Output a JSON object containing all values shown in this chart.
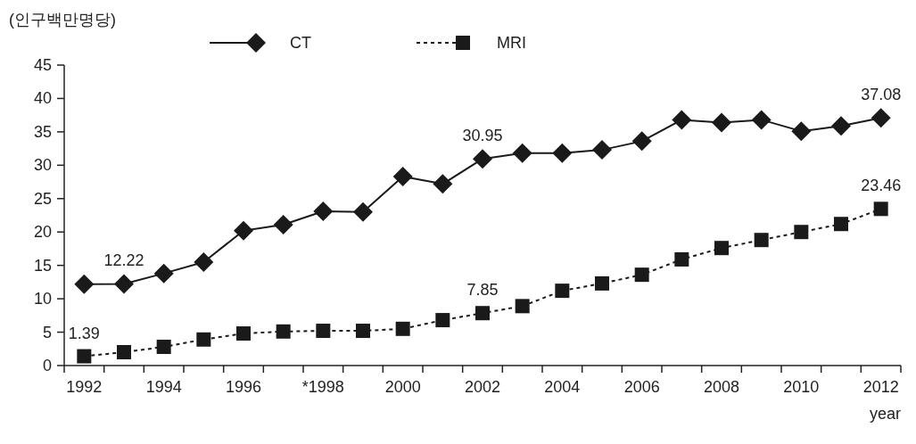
{
  "chart_data": {
    "type": "line",
    "ylabel": "(인구백만명당)",
    "xlabel": "year",
    "categories": [
      "1992",
      null,
      "1994",
      null,
      "1996",
      null,
      "*1998",
      null,
      "2000",
      null,
      "2002",
      null,
      "2004",
      null,
      "2006",
      null,
      "2008",
      null,
      "2010",
      null,
      "2012"
    ],
    "ylim": [
      0,
      45
    ],
    "yticks": [
      0,
      5,
      10,
      15,
      20,
      25,
      30,
      35,
      40,
      45
    ],
    "legend": "top",
    "series": [
      {
        "name": "CT",
        "color": "#1a1a1a",
        "marker": "diamond",
        "line_style": "solid",
        "values": [
          12.2,
          12.22,
          13.8,
          15.5,
          20.2,
          21.1,
          23.1,
          23.0,
          28.3,
          27.2,
          30.95,
          31.8,
          31.8,
          32.3,
          33.6,
          36.8,
          36.4,
          36.8,
          35.1,
          35.9,
          37.08
        ],
        "value_labels": [
          null,
          "12.22",
          null,
          null,
          null,
          null,
          null,
          null,
          null,
          null,
          "30.95",
          null,
          null,
          null,
          null,
          null,
          null,
          null,
          null,
          null,
          "37.08"
        ]
      },
      {
        "name": "MRI",
        "color": "#1a1a1a",
        "marker": "square",
        "line_style": "dotted",
        "values": [
          1.39,
          2.0,
          2.8,
          3.9,
          4.8,
          5.1,
          5.2,
          5.2,
          5.5,
          6.8,
          7.85,
          8.9,
          11.2,
          12.3,
          13.6,
          15.9,
          17.6,
          18.8,
          20.0,
          21.2,
          23.46
        ],
        "value_labels": [
          "1.39",
          null,
          null,
          null,
          null,
          null,
          null,
          null,
          null,
          null,
          "7.85",
          null,
          null,
          null,
          null,
          null,
          null,
          null,
          null,
          null,
          "23.46"
        ]
      }
    ]
  }
}
